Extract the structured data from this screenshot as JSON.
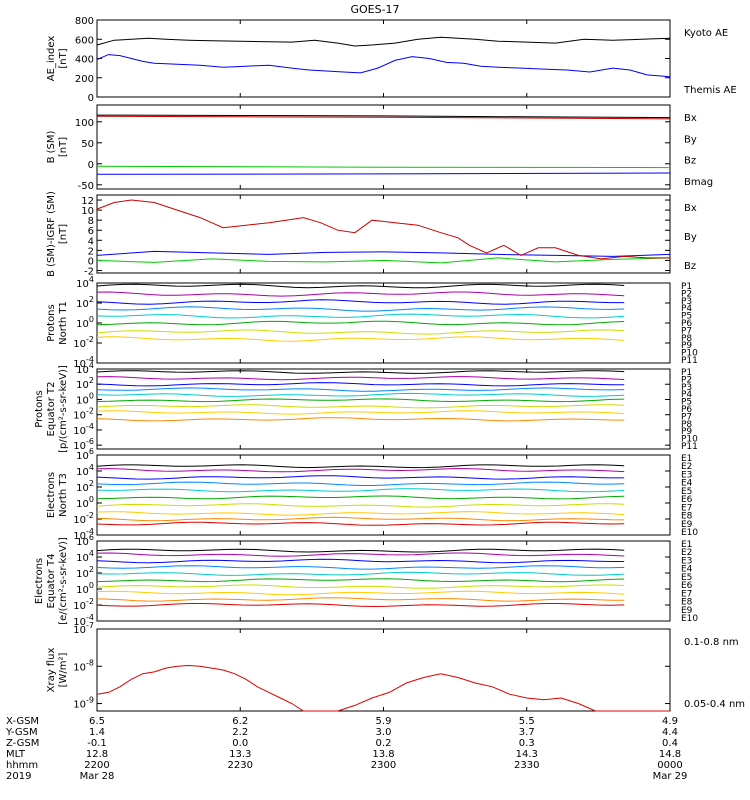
{
  "chart_data": [
    {
      "type": "line",
      "title": "GOES-17",
      "ylabel": "AE_index [nT]",
      "yticks": [
        "800",
        "600",
        "400",
        "200",
        "0"
      ],
      "ylim": [
        0,
        800
      ],
      "series": [
        {
          "name": "Kyoto AE",
          "color": "#000000",
          "x": [
            0,
            3,
            6,
            9,
            12,
            16,
            20,
            25,
            30,
            34,
            38,
            42,
            45,
            48,
            52,
            56,
            60,
            63,
            66,
            70,
            75,
            80,
            85,
            90,
            95,
            100
          ],
          "y": [
            540,
            590,
            600,
            610,
            600,
            590,
            585,
            580,
            575,
            570,
            590,
            560,
            530,
            540,
            560,
            600,
            620,
            610,
            600,
            580,
            570,
            560,
            600,
            590,
            600,
            610
          ]
        },
        {
          "name": "Themis AE",
          "color": "#0000ff",
          "x": [
            0,
            2,
            4,
            6,
            8,
            10,
            14,
            18,
            22,
            26,
            30,
            34,
            37,
            40,
            43,
            46,
            49,
            52,
            55,
            58,
            61,
            64,
            67,
            70,
            74,
            78,
            82,
            86,
            90,
            93,
            96,
            100
          ],
          "y": [
            390,
            440,
            430,
            400,
            370,
            350,
            340,
            330,
            310,
            320,
            330,
            300,
            280,
            270,
            260,
            250,
            300,
            380,
            420,
            400,
            360,
            350,
            320,
            310,
            300,
            290,
            280,
            260,
            300,
            280,
            230,
            210
          ]
        }
      ]
    },
    {
      "type": "line",
      "ylabel": "B (SM) [nT]",
      "yticks": [
        "100",
        "50",
        "0",
        "-50"
      ],
      "ylim": [
        -60,
        140
      ],
      "series": [
        {
          "name": "Bx",
          "color": "#0000ff",
          "x": [
            0,
            50,
            100
          ],
          "y": [
            -25,
            -24,
            -22
          ]
        },
        {
          "name": "By",
          "color": "#00cc00",
          "x": [
            0,
            50,
            100
          ],
          "y": [
            -6,
            -8,
            -9
          ]
        },
        {
          "name": "Bz",
          "color": "#cc0000",
          "x": [
            0,
            25,
            50,
            75,
            100
          ],
          "y": [
            113,
            112,
            111,
            109,
            107
          ]
        },
        {
          "name": "Bmag",
          "color": "#000000",
          "x": [
            0,
            25,
            50,
            75,
            100
          ],
          "y": [
            116,
            115,
            114,
            112,
            110
          ]
        }
      ]
    },
    {
      "type": "line",
      "ylabel": "B (SM)-IGRF (SM) [nT]",
      "yticks": [
        "12",
        "10",
        "8",
        "6",
        "4",
        "2",
        "0",
        "-2"
      ],
      "ylim": [
        -2.5,
        13
      ],
      "series": [
        {
          "name": "Bx",
          "color": "#0000ff",
          "x": [
            0,
            10,
            20,
            30,
            40,
            50,
            60,
            70,
            80,
            90,
            100
          ],
          "y": [
            1.0,
            1.8,
            1.5,
            1.2,
            1.6,
            1.7,
            1.5,
            1.2,
            1.0,
            0.8,
            1.2
          ]
        },
        {
          "name": "By",
          "color": "#00cc00",
          "x": [
            0,
            10,
            20,
            30,
            40,
            50,
            60,
            70,
            80,
            90,
            100
          ],
          "y": [
            0.0,
            -0.4,
            0.3,
            -0.2,
            -0.3,
            0.0,
            -0.5,
            0.5,
            -0.3,
            0.2,
            0.5
          ]
        },
        {
          "name": "Bz",
          "color": "#cc0000",
          "x": [
            0,
            3,
            6,
            10,
            14,
            18,
            22,
            26,
            30,
            33,
            36,
            39,
            42,
            45,
            48,
            52,
            56,
            60,
            63,
            65,
            68,
            71,
            74,
            77,
            80,
            84,
            88,
            92,
            96,
            100
          ],
          "y": [
            10.2,
            11.5,
            12.0,
            11.5,
            10.0,
            8.5,
            6.5,
            7.0,
            7.5,
            8.0,
            8.5,
            7.5,
            6.0,
            5.5,
            8.0,
            7.5,
            7.0,
            5.5,
            4.5,
            3.0,
            1.5,
            3.0,
            1.0,
            2.5,
            2.5,
            1.0,
            0.3,
            0.8,
            0.5,
            0.5
          ]
        }
      ]
    },
    {
      "type": "line",
      "ylabel": "Protons North T1",
      "yscale": "log",
      "yticks": [
        "10^4",
        "10^2",
        "10^0",
        "10^-2",
        "10^-4"
      ],
      "ylim_exp": [
        -4,
        4
      ],
      "legend": [
        "P1",
        "P2",
        "P3",
        "P4",
        "P5",
        "P6",
        "P7",
        "P8",
        "P9",
        "P10",
        "P11"
      ],
      "channel_colors": [
        "#000000",
        "#aa00aa",
        "#0000ff",
        "#0088ff",
        "#00cccc",
        "#00aa00",
        "#ccdd00",
        "#ffcc00",
        "#ff8800",
        "#dd0000",
        "#aa0000"
      ],
      "levels_exp": [
        3.7,
        2.9,
        2.1,
        1.4,
        0.7,
        0.0,
        -0.9,
        -1.6,
        -2.4,
        -3.0,
        -3.4
      ],
      "visible_channels": 8
    },
    {
      "type": "line",
      "ylabel": "Protons Equator T2 [p/(cm^2-s-sr-keV)]",
      "yscale": "log",
      "yticks": [
        "10^4",
        "10^2",
        "10^0",
        "10^-2",
        "10^-4",
        "10^-6"
      ],
      "ylim_exp": [
        -6.5,
        4
      ],
      "legend": [
        "P1",
        "P2",
        "P3",
        "P4",
        "P5",
        "P6",
        "P7",
        "P8",
        "P9",
        "P10",
        "P11"
      ],
      "channel_colors": [
        "#000000",
        "#aa00aa",
        "#0000ff",
        "#0088ff",
        "#00cccc",
        "#00aa00",
        "#ccdd00",
        "#ffcc00",
        "#ff8800",
        "#dd0000",
        "#aa0000"
      ],
      "levels_exp": [
        3.6,
        2.8,
        2.0,
        1.3,
        0.6,
        -0.1,
        -0.9,
        -1.7,
        -2.6,
        -3.2,
        -3.6
      ],
      "visible_channels": 9
    },
    {
      "type": "line",
      "ylabel": "Electrons North T3",
      "yscale": "log",
      "yticks": [
        "10^6",
        "10^4",
        "10^2",
        "10^0",
        "10^-2",
        "10^-4"
      ],
      "ylim_exp": [
        -4,
        6
      ],
      "legend": [
        "E1",
        "E2",
        "E3",
        "E4",
        "E5",
        "E6",
        "E7",
        "E8",
        "E9",
        "E10"
      ],
      "channel_colors": [
        "#000000",
        "#aa00aa",
        "#0000ff",
        "#0088ff",
        "#00cccc",
        "#00aa00",
        "#ccdd00",
        "#ffcc00",
        "#ff8800",
        "#dd0000"
      ],
      "levels_exp": [
        4.6,
        4.1,
        3.2,
        2.4,
        1.6,
        0.7,
        -0.3,
        -1.3,
        -2.0,
        -2.6
      ],
      "visible_channels": 10
    },
    {
      "type": "line",
      "ylabel": "Electrons Equator T4 [e/(cm^2-s-sr-keV)]",
      "yscale": "log",
      "yticks": [
        "10^6",
        "10^4",
        "10^2",
        "10^0",
        "10^-2",
        "10^-4"
      ],
      "ylim_exp": [
        -4,
        6
      ],
      "legend": [
        "E1",
        "E2",
        "E3",
        "E4",
        "E5",
        "E6",
        "E7",
        "E8",
        "E9",
        "E10"
      ],
      "channel_colors": [
        "#000000",
        "#aa00aa",
        "#0000ff",
        "#0088ff",
        "#00cccc",
        "#00aa00",
        "#ccdd00",
        "#ffcc00",
        "#ff8800",
        "#dd0000"
      ],
      "levels_exp": [
        4.8,
        4.3,
        3.5,
        2.7,
        1.9,
        1.1,
        0.3,
        -0.5,
        -1.3,
        -2.0
      ],
      "visible_channels": 10
    },
    {
      "type": "line",
      "ylabel": "Xray flux [W/m^2]",
      "yscale": "log",
      "yticks": [
        "10^-7",
        "10^-8",
        "10^-9"
      ],
      "ylim_exp": [
        -9.2,
        -7
      ],
      "series": [
        {
          "name": "0.1-0.8 nm",
          "color": "#dd0000",
          "x": [
            0,
            2,
            4,
            6,
            8,
            10,
            12,
            14,
            16,
            18,
            20,
            22,
            24,
            26,
            28,
            30,
            32,
            34,
            36,
            38,
            40,
            42,
            45,
            48,
            51,
            54,
            57,
            60,
            63,
            66,
            69,
            72,
            75,
            78,
            81,
            84,
            87,
            90,
            93,
            96,
            100
          ],
          "y": [
            -8.75,
            -8.7,
            -8.55,
            -8.35,
            -8.2,
            -8.15,
            -8.05,
            -8.0,
            -7.98,
            -8.0,
            -8.05,
            -8.1,
            -8.2,
            -8.35,
            -8.55,
            -8.7,
            -8.85,
            -9.0,
            -9.2,
            -9.3,
            -9.3,
            -9.3,
            -9.05,
            -8.85,
            -8.7,
            -8.45,
            -8.3,
            -8.2,
            -8.3,
            -8.45,
            -8.55,
            -8.75,
            -8.85,
            -8.9,
            -8.85,
            -9.0,
            -9.2,
            -9.3,
            -9.3,
            -9.3,
            -9.3
          ]
        },
        {
          "name": "0.05-0.4 nm",
          "color": "#0000cc",
          "x": [],
          "y": []
        }
      ]
    }
  ],
  "title": "GOES-17",
  "labels": {
    "ae": [
      "AE_index",
      "[nT]"
    ],
    "bsm": [
      "B (SM)",
      "[nT]"
    ],
    "bdiff": [
      "B (SM)-IGRF (SM)",
      "[nT]"
    ],
    "pn": [
      "Protons",
      "North T1"
    ],
    "pe": [
      "Protons",
      "Equator T2",
      "[p/(cm²-s-sr-keV)]"
    ],
    "en": [
      "Electrons",
      "North T3"
    ],
    "ee": [
      "Electrons",
      "Equator T4",
      "[e/(cm²-s-sr-keV)]"
    ],
    "xr": [
      "Xray flux",
      "[W/m²]"
    ]
  },
  "legend_text": {
    "ae": [
      "Kyoto AE",
      "Themis AE"
    ],
    "bsm": [
      "Bx",
      "By",
      "Bz",
      "Bmag"
    ],
    "bdiff": [
      "Bx",
      "By",
      "Bz"
    ],
    "xr": [
      "0.1-0.8 nm",
      "0.05-0.4 nm"
    ]
  },
  "ephemeris": {
    "row_labels": [
      "X-GSM",
      "Y-GSM",
      "Z-GSM",
      "MLT",
      "hhmm",
      "2019"
    ],
    "columns": [
      [
        "6.5",
        "1.4",
        "-0.1",
        "12.8",
        "2200",
        "Mar 28"
      ],
      [
        "6.2",
        "2.2",
        "0.0",
        "13.3",
        "2230",
        ""
      ],
      [
        "5.9",
        "3.0",
        "0.2",
        "13.8",
        "2300",
        ""
      ],
      [
        "5.5",
        "3.7",
        "0.3",
        "14.3",
        "2330",
        ""
      ],
      [
        "4.9",
        "4.4",
        "0.4",
        "14.8",
        "0000",
        "Mar 29"
      ]
    ]
  }
}
